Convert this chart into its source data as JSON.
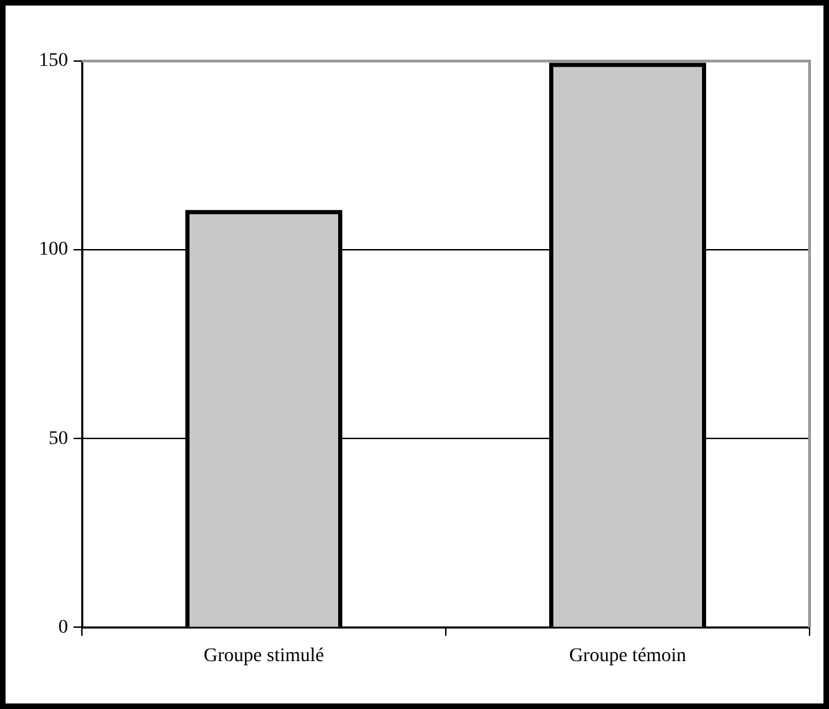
{
  "chart_data": {
    "type": "bar",
    "categories": [
      "Groupe stimulé",
      "Groupe témoin"
    ],
    "values": [
      110,
      149
    ],
    "color": "#c8c8c8",
    "ylim": [
      0,
      150
    ],
    "yticks": [
      0,
      50,
      100,
      150
    ],
    "grid": "y"
  }
}
